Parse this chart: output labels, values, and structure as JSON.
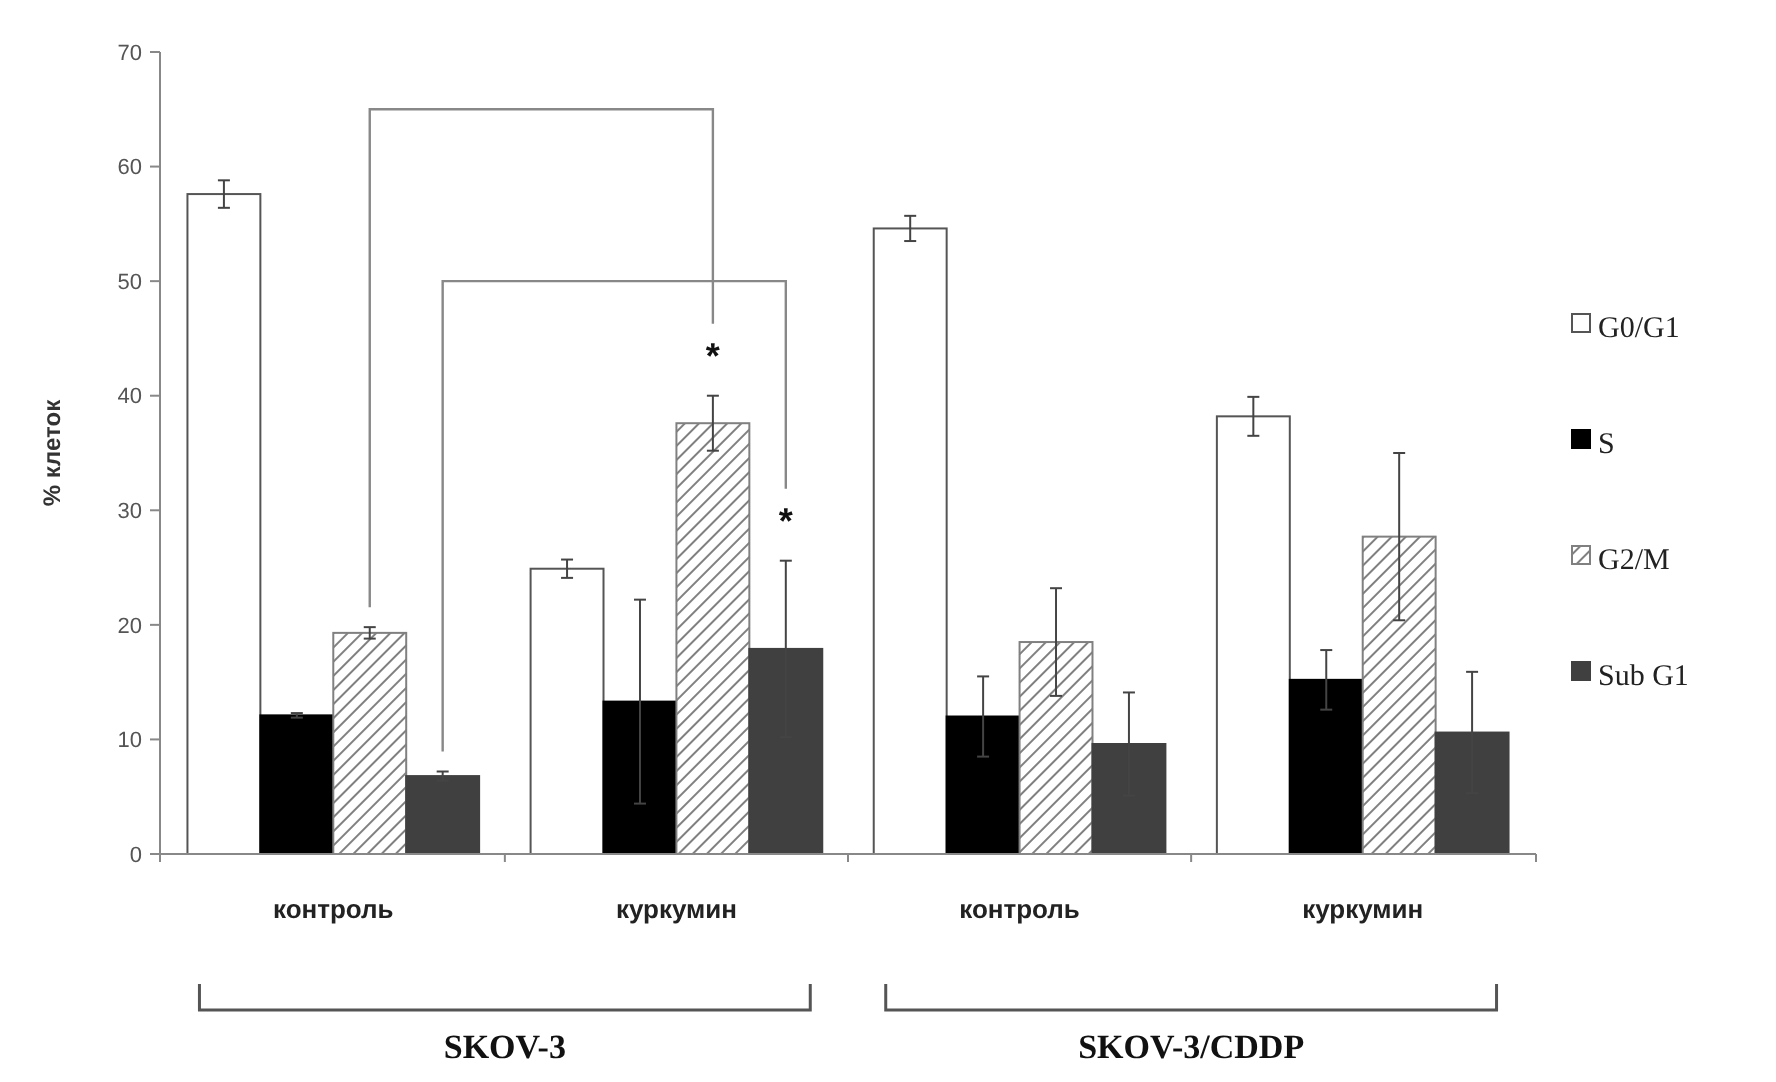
{
  "chart_data": {
    "type": "bar",
    "ylabel": "% клеток",
    "categories": [
      "контроль",
      "куркумин",
      "контроль",
      "куркумин"
    ],
    "series": [
      {
        "name": "G0/G1",
        "color": "#ffffff",
        "values": [
          57.6,
          24.9,
          54.6,
          38.2
        ],
        "errors": [
          1.2,
          0.8,
          1.1,
          1.7
        ]
      },
      {
        "name": "S",
        "color": "#000000",
        "values": [
          12.1,
          13.3,
          12.0,
          15.2
        ],
        "errors": [
          0.2,
          8.9,
          3.5,
          2.6
        ]
      },
      {
        "name": "G2/M",
        "color": "#808080",
        "values": [
          19.3,
          37.6,
          18.5,
          27.7
        ],
        "errors": [
          0.5,
          2.4,
          4.7,
          7.3
        ]
      },
      {
        "name": "Sub G1",
        "color": "#404040",
        "values": [
          6.8,
          17.9,
          9.6,
          10.6
        ],
        "errors": [
          0.4,
          7.7,
          4.5,
          5.3
        ]
      }
    ],
    "ylim": [
      0,
      70
    ],
    "yticks": [
      0,
      10,
      20,
      30,
      40,
      50,
      60,
      70
    ],
    "legend": "right",
    "annotations": [
      "*",
      "*",
      "SKOV-3",
      "SKOV-3/CDDP"
    ]
  }
}
